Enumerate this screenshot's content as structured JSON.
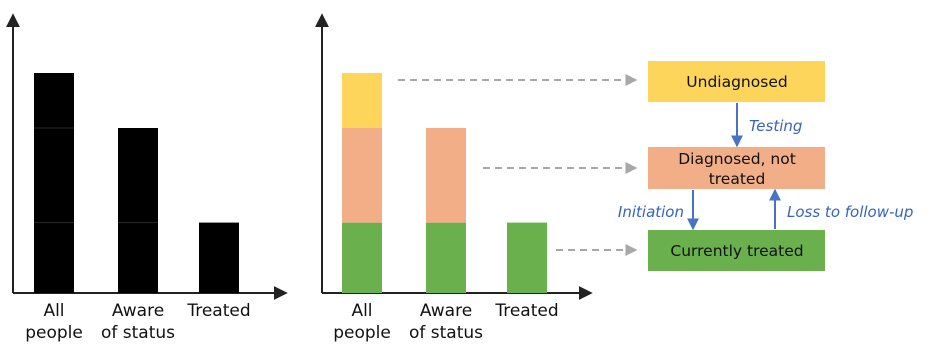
{
  "categories": [
    [
      "All",
      "people"
    ],
    [
      "Aware",
      "of status"
    ],
    [
      "Treated"
    ]
  ],
  "chart_data": [
    {
      "type": "bar",
      "title": "",
      "xlabel": "",
      "ylabel": "",
      "categories": [
        "All people",
        "Aware of status",
        "Treated"
      ],
      "series": [
        {
          "values": [
            1.0,
            0.75,
            0.32
          ]
        }
      ],
      "ylim": [
        0,
        1.2
      ],
      "grid": false,
      "colors": {
        "bar": "#000000"
      }
    },
    {
      "type": "bar",
      "stacked": true,
      "title": "",
      "xlabel": "",
      "ylabel": "",
      "categories": [
        "All people",
        "Aware of status",
        "Treated"
      ],
      "series": [
        {
          "values": [
            0.32,
            0.32,
            0.32
          ],
          "color": "#6ab04c"
        },
        {
          "values": [
            0.43,
            0.43,
            0.0
          ],
          "color": "#f2ae86"
        },
        {
          "values": [
            0.25,
            0.0,
            0.0
          ],
          "color": "#fcd55a"
        }
      ],
      "ylim": [
        0,
        1.2
      ],
      "grid": false
    }
  ],
  "boxes": {
    "undiagnosed": {
      "lines": [
        "Undiagnosed"
      ],
      "color": "#fcd55a"
    },
    "diagnosed": {
      "lines": [
        "Diagnosed, not",
        "treated"
      ],
      "color": "#f2ae86"
    },
    "treated": {
      "lines": [
        "Currently treated"
      ],
      "color": "#6ab04c"
    }
  },
  "flows": {
    "testing": "Testing",
    "initiation": "Initiation",
    "loss": "Loss to follow-up"
  },
  "colors": {
    "flow_arrow": "#4a72c4",
    "flow_text": "#3563c4",
    "dashed": "#a8a8a8",
    "axis": "#222222"
  }
}
